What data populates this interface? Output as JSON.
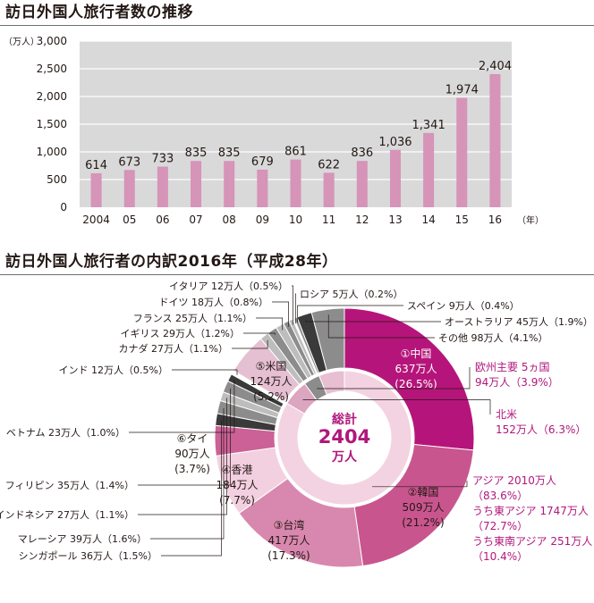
{
  "colors": {
    "bar": "#d594b8",
    "plot_bg": "#d9d9d9",
    "accent": "#b0177c",
    "china": "#b5157a",
    "korea": "#c9558f",
    "taiwan": "#d888ae",
    "hongkong": "#f3d0e0",
    "thai": "#cb6197",
    "us": "#e5bfd2",
    "inner_asia": "#f3d3e1",
    "inner_other": "#e7bed2",
    "inner_na": "#dca5c0",
    "gray_dark": "#3a3a3a",
    "gray_mid": "#8c8c8c",
    "gray_light": "#bdbdbd"
  },
  "chart_data": [
    {
      "type": "bar",
      "title": "訪日外国人旅行者数の推移",
      "ylabel": "（万人）",
      "xlabel": "（年）",
      "ylim": [
        0,
        3000
      ],
      "yticks": [
        "0",
        "500",
        "1,000",
        "1,500",
        "2,000",
        "2,500",
        "3,000"
      ],
      "categories": [
        "2004",
        "05",
        "06",
        "07",
        "08",
        "09",
        "10",
        "11",
        "12",
        "13",
        "14",
        "15",
        "16"
      ],
      "values": [
        614,
        673,
        733,
        835,
        835,
        679,
        861,
        622,
        836,
        1036,
        1341,
        1974,
        2404
      ],
      "value_labels": [
        "614",
        "673",
        "733",
        "835",
        "835",
        "679",
        "861",
        "622",
        "836",
        "1,036",
        "1,341",
        "1,974",
        "2,404"
      ],
      "grid": true
    },
    {
      "type": "pie",
      "title": "訪日外国人旅行者の内訳2016年（平成28年）",
      "center": {
        "label": "総計",
        "value": "2404",
        "unit": "万人"
      },
      "outer": [
        {
          "key": "china",
          "value": 637,
          "text": [
            "①中国",
            "637万人",
            "(26.5%)"
          ]
        },
        {
          "key": "korea",
          "value": 509,
          "text": [
            "②韓国",
            "509万人",
            "(21.2%)"
          ]
        },
        {
          "key": "taiwan",
          "value": 417,
          "text": [
            "③台湾",
            "417万人",
            "(17.3%)"
          ]
        },
        {
          "key": "hongkong",
          "value": 184,
          "text": [
            "④香港",
            "184万人",
            "(7.7%)"
          ]
        },
        {
          "key": "thai",
          "value": 90,
          "text": [
            "⑥タイ",
            "90万人",
            "(3.7%)"
          ]
        },
        {
          "key": "singapore",
          "value": 36,
          "text": [
            "シンガポール 36万人（1.5%）"
          ]
        },
        {
          "key": "malaysia",
          "value": 39,
          "text": [
            "マレーシア 39万人（1.6%）"
          ]
        },
        {
          "key": "indonesia",
          "value": 27,
          "text": [
            "インドネシア 27万人（1.1%）"
          ]
        },
        {
          "key": "philippines",
          "value": 35,
          "text": [
            "フィリピン 35万人（1.4%）"
          ]
        },
        {
          "key": "vietnam",
          "value": 23,
          "text": [
            "ベトナム 23万人（1.0%）"
          ]
        },
        {
          "key": "india",
          "value": 12,
          "text": [
            "インド 12万人（0.5%）"
          ]
        },
        {
          "key": "us",
          "value": 124,
          "text": [
            "⑤米国",
            "124万人",
            "(5.2%)"
          ]
        },
        {
          "key": "canada",
          "value": 27,
          "text": [
            "カナダ 27万人（1.1%）"
          ]
        },
        {
          "key": "uk",
          "value": 29,
          "text": [
            "イギリス 29万人（1.2%）"
          ]
        },
        {
          "key": "france",
          "value": 25,
          "text": [
            "フランス 25万人（1.1%）"
          ]
        },
        {
          "key": "germany",
          "value": 18,
          "text": [
            "ドイツ 18万人（0.8%）"
          ]
        },
        {
          "key": "italy",
          "value": 12,
          "text": [
            "イタリア 12万人（0.5%）"
          ]
        },
        {
          "key": "russia",
          "value": 5,
          "text": [
            "ロシア 5万人（0.2%）"
          ]
        },
        {
          "key": "spain",
          "value": 9,
          "text": [
            "スペイン 9万人（0.4%）"
          ]
        },
        {
          "key": "australia",
          "value": 45,
          "text": [
            "オーストラリア 45万人（1.9%）"
          ]
        },
        {
          "key": "other",
          "value": 98,
          "text": [
            "その他 98万人（4.1%）"
          ]
        }
      ],
      "inner": [
        {
          "key": "asia",
          "value": 2010,
          "text": [
            "アジア 2010万人",
            "（83.6%）",
            "うち東アジア 1747万人",
            "（72.7%）",
            "うち東南アジア 251万人",
            "（10.4%）"
          ]
        },
        {
          "key": "north_america",
          "value": 152,
          "text": [
            "北米",
            "152万人（6.3%）"
          ]
        },
        {
          "key": "europe",
          "value": 94,
          "text": [
            "欧州主要 5ヵ国",
            "94万人（3.9%）"
          ]
        },
        {
          "key": "rest",
          "value": 148,
          "text": []
        }
      ]
    }
  ]
}
